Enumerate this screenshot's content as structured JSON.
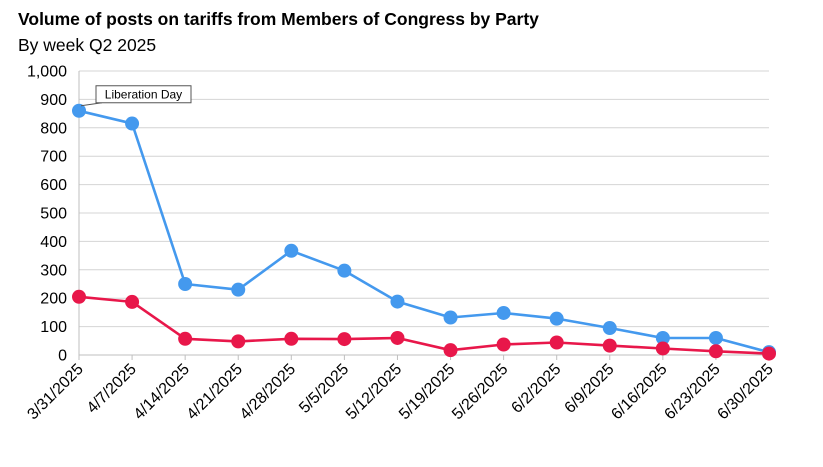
{
  "chart_data": {
    "type": "line",
    "title": "Volume of posts on tariffs from Members of Congress by Party",
    "subtitle": "By week Q2 2025",
    "categories": [
      "3/31/2025",
      "4/7/2025",
      "4/14/2025",
      "4/21/2025",
      "4/28/2025",
      "5/5/2025",
      "5/12/2025",
      "5/19/2025",
      "5/26/2025",
      "6/2/2025",
      "6/9/2025",
      "6/16/2025",
      "6/23/2025",
      "6/30/2025"
    ],
    "series": [
      {
        "color": "#4499ee",
        "values": [
          860,
          815,
          250,
          230,
          367,
          297,
          188,
          132,
          148,
          128,
          95,
          60,
          60,
          10
        ]
      },
      {
        "color": "#e8174a",
        "values": [
          205,
          187,
          57,
          48,
          57,
          56,
          60,
          17,
          37,
          44,
          33,
          23,
          13,
          5
        ]
      }
    ],
    "ylim": [
      0,
      1000
    ],
    "yticks": [
      "0",
      "100",
      "200",
      "300",
      "400",
      "500",
      "600",
      "700",
      "800",
      "900",
      "1,000"
    ],
    "grid": true,
    "annotations": [
      {
        "text": "Liberation Day",
        "category": "3/31/2025",
        "value": 860
      }
    ]
  }
}
